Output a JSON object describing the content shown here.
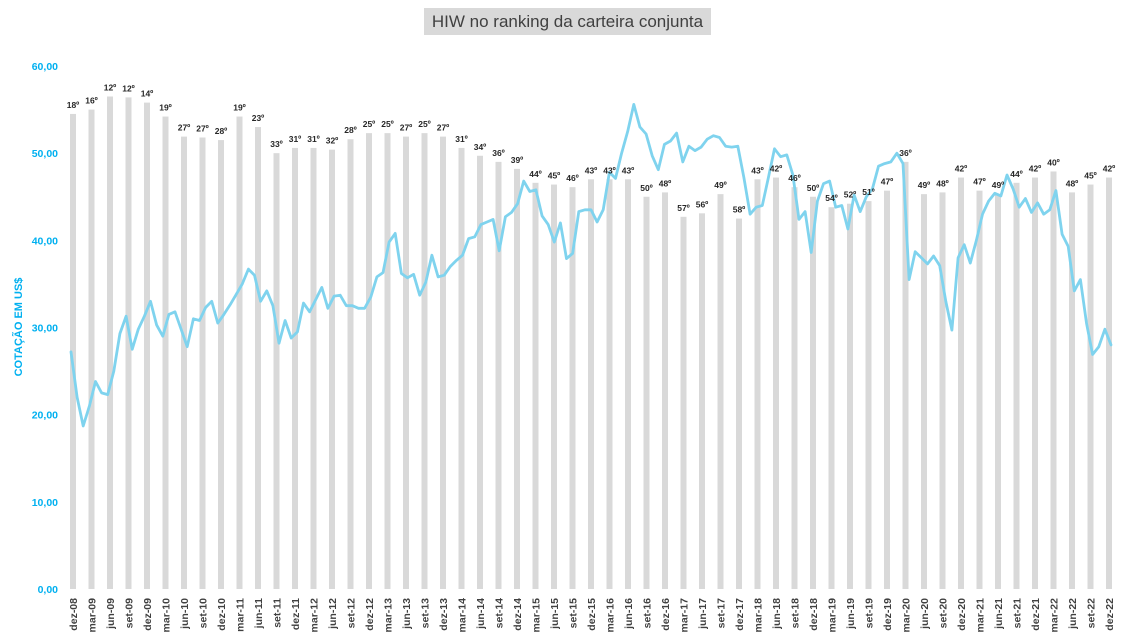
{
  "chart_data": {
    "type": "bar+line",
    "title": "HIW no ranking da carteira conjunta",
    "ylabel": "COTAÇÃO EM US$",
    "ylim": [
      0,
      60
    ],
    "y_tick_labels": [
      "0,00",
      "10,00",
      "20,00",
      "30,00",
      "40,00",
      "50,00",
      "60,00"
    ],
    "colors": {
      "bars": "#d9d9d9",
      "line": "#7fd3ee",
      "axis_text": "#00b0f0"
    },
    "bar_series": {
      "name": "",
      "bars": [
        {
          "label": "18º",
          "value": 54.5
        },
        {
          "label": "16º",
          "value": 55.0
        },
        {
          "label": "12º",
          "value": 56.5
        },
        {
          "label": "12º",
          "value": 56.4
        },
        {
          "label": "14º",
          "value": 55.8
        },
        {
          "label": "19º",
          "value": 54.2
        },
        {
          "label": "27º",
          "value": 51.9
        },
        {
          "label": "27º",
          "value": 51.8
        },
        {
          "label": "28º",
          "value": 51.5
        },
        {
          "label": "19º",
          "value": 54.2
        },
        {
          "label": "23º",
          "value": 53.0
        },
        {
          "label": "33º",
          "value": 50.0
        },
        {
          "label": "31º",
          "value": 50.6
        },
        {
          "label": "31º",
          "value": 50.6
        },
        {
          "label": "32º",
          "value": 50.4
        },
        {
          "label": "28º",
          "value": 51.6
        },
        {
          "label": "25º",
          "value": 52.3
        },
        {
          "label": "25º",
          "value": 52.3
        },
        {
          "label": "27º",
          "value": 51.9
        },
        {
          "label": "25º",
          "value": 52.3
        },
        {
          "label": "27º",
          "value": 51.9
        },
        {
          "label": "31º",
          "value": 50.6
        },
        {
          "label": "34º",
          "value": 49.7
        },
        {
          "label": "36º",
          "value": 49.0
        },
        {
          "label": "39º",
          "value": 48.2
        },
        {
          "label": "44º",
          "value": 46.6
        },
        {
          "label": "45º",
          "value": 46.4
        },
        {
          "label": "46º",
          "value": 46.1
        },
        {
          "label": "43º",
          "value": 47.0
        },
        {
          "label": "43º",
          "value": 47.0
        },
        {
          "label": "43º",
          "value": 47.0
        },
        {
          "label": "50º",
          "value": 45.0
        },
        {
          "label": "48º",
          "value": 45.5
        },
        {
          "label": "57º",
          "value": 42.7
        },
        {
          "label": "56º",
          "value": 43.1
        },
        {
          "label": "49º",
          "value": 45.3
        },
        {
          "label": "58º",
          "value": 42.5
        },
        {
          "label": "43º",
          "value": 47.0
        },
        {
          "label": "42º",
          "value": 47.2
        },
        {
          "label": "46º",
          "value": 46.1
        },
        {
          "label": "50º",
          "value": 45.0
        },
        {
          "label": "54º",
          "value": 43.8
        },
        {
          "label": "52º",
          "value": 44.2
        },
        {
          "label": "51º",
          "value": 44.5
        },
        {
          "label": "47º",
          "value": 45.7
        },
        {
          "label": "36º",
          "value": 49.0
        },
        {
          "label": "49º",
          "value": 45.3
        },
        {
          "label": "48º",
          "value": 45.5
        },
        {
          "label": "42º",
          "value": 47.2
        },
        {
          "label": "47º",
          "value": 45.7
        },
        {
          "label": "49º",
          "value": 45.3
        },
        {
          "label": "44º",
          "value": 46.6
        },
        {
          "label": "42º",
          "value": 47.2
        },
        {
          "label": "40º",
          "value": 47.9
        },
        {
          "label": "48º",
          "value": 45.5
        },
        {
          "label": "45º",
          "value": 46.4
        },
        {
          "label": "42º",
          "value": 47.2
        }
      ]
    },
    "line_series": {
      "name": "",
      "values": [
        27.2,
        22.0,
        18.7,
        21.0,
        23.8,
        22.5,
        22.3,
        25.0,
        29.3,
        31.3,
        27.5,
        29.8,
        31.3,
        33.0,
        30.3,
        29.0,
        31.5,
        31.8,
        29.8,
        27.8,
        31.0,
        30.8,
        32.3,
        33.0,
        30.5,
        31.5,
        32.6,
        33.8,
        35.0,
        36.7,
        36.0,
        33.0,
        34.2,
        32.5,
        28.2,
        30.8,
        28.8,
        29.5,
        32.8,
        31.8,
        33.2,
        34.6,
        32.2,
        33.6,
        33.7,
        32.5,
        32.5,
        32.2,
        32.2,
        33.5,
        35.8,
        36.3,
        39.8,
        40.8,
        36.2,
        35.7,
        36.1,
        33.7,
        35.2,
        38.3,
        35.8,
        36.0,
        37.0,
        37.7,
        38.3,
        40.2,
        40.4,
        41.8,
        42.1,
        42.4,
        38.8,
        42.7,
        43.2,
        44.2,
        46.8,
        45.6,
        45.8,
        42.8,
        41.8,
        39.8,
        42.0,
        37.9,
        38.5,
        43.3,
        43.5,
        43.5,
        42.1,
        43.5,
        47.8,
        47.1,
        50.0,
        52.5,
        55.6,
        53.0,
        52.2,
        49.7,
        48.1,
        51.0,
        51.4,
        52.3,
        49.0,
        50.8,
        50.3,
        50.7,
        51.6,
        52.0,
        51.8,
        50.8,
        50.7,
        50.8,
        47.2,
        43.0,
        43.8,
        44.0,
        47.2,
        50.5,
        49.6,
        49.8,
        47.5,
        42.4,
        43.3,
        38.6,
        44.5,
        46.5,
        46.8,
        43.8,
        44.0,
        41.3,
        45.2,
        43.3,
        45.0,
        45.9,
        48.5,
        48.8,
        49.0,
        50.0,
        48.8,
        35.5,
        38.7,
        38.0,
        37.3,
        38.2,
        37.1,
        33.0,
        29.7,
        38.0,
        39.5,
        37.4,
        40.0,
        43.0,
        44.5,
        45.4,
        45.1,
        47.5,
        45.9,
        43.8,
        44.8,
        43.2,
        44.3,
        43.0,
        43.5,
        45.7,
        40.7,
        39.3,
        34.2,
        35.5,
        30.5,
        26.9,
        27.8,
        29.8,
        28.0
      ]
    },
    "x_tick_labels": [
      "dez-08",
      "mar-09",
      "jun-09",
      "set-09",
      "dez-09",
      "mar-10",
      "jun-10",
      "set-10",
      "dez-10",
      "mar-11",
      "jun-11",
      "set-11",
      "dez-11",
      "mar-12",
      "jun-12",
      "set-12",
      "dez-12",
      "mar-13",
      "jun-13",
      "set-13",
      "dez-13",
      "mar-14",
      "jun-14",
      "set-14",
      "dez-14",
      "mar-15",
      "jun-15",
      "set-15",
      "dez-15",
      "mar-16",
      "jun-16",
      "set-16",
      "dez-16",
      "mar-17",
      "jun-17",
      "set-17",
      "dez-17",
      "mar-18",
      "jun-18",
      "set-18",
      "dez-18",
      "mar-19",
      "jun-19",
      "set-19",
      "dez-19",
      "mar-20",
      "jun-20",
      "set-20",
      "dez-20",
      "mar-21",
      "jun-21",
      "set-21",
      "dez-21",
      "mar-22",
      "jun-22",
      "set-22",
      "dez-22"
    ],
    "grid": false,
    "legend": "none"
  }
}
